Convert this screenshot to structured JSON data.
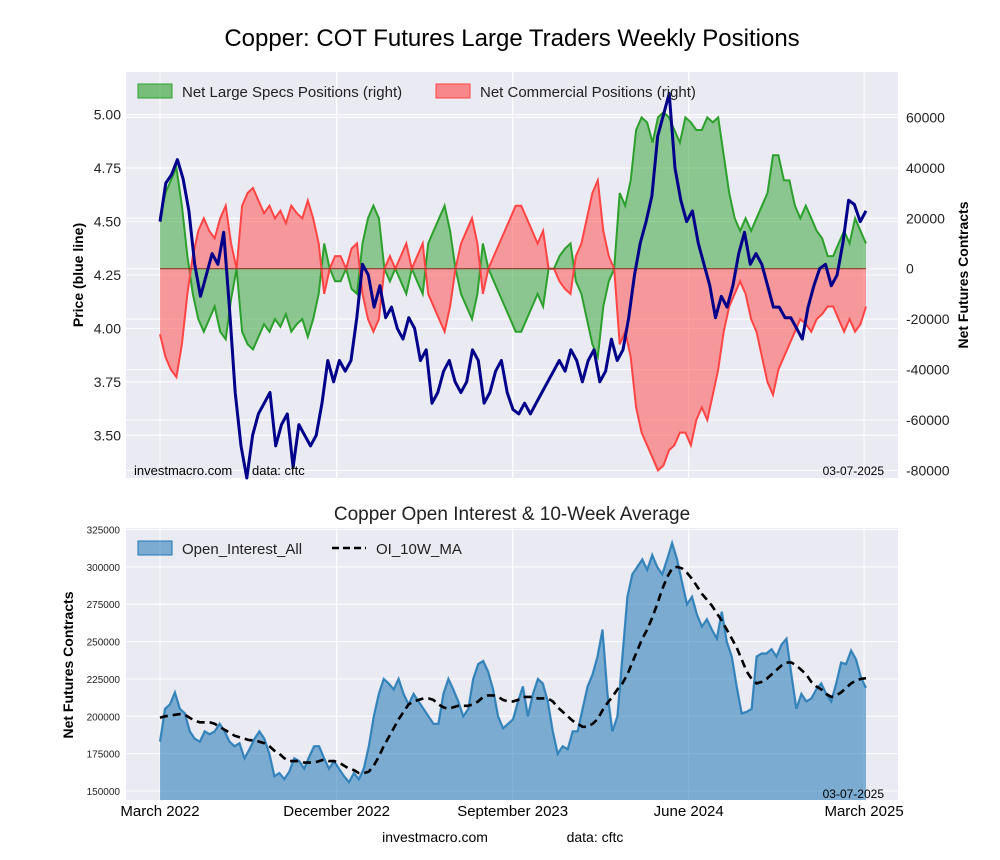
{
  "figure_title": "Copper: COT Futures Large Traders Weekly Positions",
  "footer": {
    "source": "investmacro.com",
    "data": "data: cftc"
  },
  "x_ticks": [
    "March 2022",
    "December 2022",
    "September 2023",
    "June 2024",
    "March 2025"
  ],
  "chart_data": [
    {
      "type": "line",
      "title": "Copper: COT Futures Large Traders Weekly Positions",
      "xlabel": "",
      "ylabel": "Price (blue line)",
      "y2label": "Net Futures Contracts",
      "ylim": [
        3.3,
        5.2
      ],
      "y2lim": [
        -83000,
        78000
      ],
      "yticks": [
        "3.50",
        "3.75",
        "4.00",
        "4.25",
        "4.50",
        "4.75",
        "5.00"
      ],
      "y2ticks": [
        "-80000",
        "-60000",
        "-40000",
        "-20000",
        "0",
        "20000",
        "40000",
        "60000"
      ],
      "grid": true,
      "legend_position": "top-left",
      "watermark": "investmacro.com",
      "source_note": "data: cftc",
      "date_label": "03-07-2025",
      "x_start": "2022-03-01",
      "x_end": "2025-03-04",
      "series": [
        {
          "name": "Net Large Specs Positions (right)",
          "type": "area",
          "axis": "right",
          "color": "#2ca02c",
          "values": [
            20000,
            30000,
            35000,
            40000,
            25000,
            5000,
            -10000,
            -20000,
            -25000,
            -20000,
            -15000,
            -25000,
            -28000,
            -12000,
            0,
            -25000,
            -30000,
            -32000,
            -27000,
            -22000,
            -25000,
            -20000,
            -23000,
            -18000,
            -25000,
            -22000,
            -20000,
            -27000,
            -20000,
            -10000,
            10000,
            0,
            -5000,
            -5000,
            0,
            -8000,
            -10000,
            10000,
            20000,
            25000,
            20000,
            0,
            -5000,
            0,
            -5000,
            -10000,
            0,
            -5000,
            -10000,
            10000,
            15000,
            20000,
            25000,
            15000,
            0,
            -10000,
            -15000,
            -20000,
            -10000,
            10000,
            0,
            -5000,
            -10000,
            -15000,
            -20000,
            -25000,
            -25000,
            -20000,
            -15000,
            -10000,
            -15000,
            0,
            0,
            5000,
            8000,
            10000,
            -5000,
            -10000,
            -20000,
            -30000,
            -35000,
            -15000,
            -5000,
            0,
            30000,
            25000,
            35000,
            55000,
            60000,
            58000,
            50000,
            60000,
            62000,
            60000,
            55000,
            50000,
            60000,
            58000,
            55000,
            55000,
            60000,
            58000,
            60000,
            45000,
            30000,
            20000,
            15000,
            20000,
            15000,
            20000,
            25000,
            30000,
            45000,
            45000,
            35000,
            35000,
            25000,
            20000,
            25000,
            20000,
            15000,
            12000,
            5000,
            5000,
            10000,
            15000,
            10000,
            20000,
            15000,
            10000
          ]
        },
        {
          "name": "Net Commercial Positions (right)",
          "type": "area",
          "axis": "right",
          "color": "#ff4444",
          "values": [
            -26000,
            -35000,
            -40000,
            -43000,
            -30000,
            -10000,
            5000,
            15000,
            20000,
            15000,
            12000,
            20000,
            25000,
            10000,
            0,
            25000,
            30000,
            32000,
            27000,
            22000,
            25000,
            20000,
            23000,
            18000,
            25000,
            22000,
            20000,
            27000,
            20000,
            10000,
            -10000,
            0,
            5000,
            5000,
            0,
            8000,
            10000,
            -10000,
            -20000,
            -25000,
            -20000,
            0,
            5000,
            0,
            5000,
            10000,
            0,
            5000,
            10000,
            -10000,
            -15000,
            -20000,
            -25000,
            -15000,
            0,
            10000,
            15000,
            20000,
            10000,
            -10000,
            0,
            5000,
            10000,
            15000,
            20000,
            25000,
            25000,
            20000,
            15000,
            10000,
            15000,
            0,
            0,
            -5000,
            -8000,
            -10000,
            5000,
            10000,
            20000,
            30000,
            35000,
            15000,
            5000,
            0,
            -30000,
            -25000,
            -35000,
            -55000,
            -65000,
            -70000,
            -75000,
            -80000,
            -78000,
            -72000,
            -70000,
            -65000,
            -65000,
            -70000,
            -60000,
            -55000,
            -60000,
            -50000,
            -40000,
            -25000,
            -15000,
            -10000,
            -5000,
            -10000,
            -20000,
            -25000,
            -35000,
            -45000,
            -50000,
            -40000,
            -35000,
            -30000,
            -25000,
            -20000,
            -22000,
            -25000,
            -20000,
            -18000,
            -15000,
            -15000,
            -20000,
            -25000,
            -20000,
            -25000,
            -22000,
            -15000
          ]
        },
        {
          "name": "",
          "type": "line",
          "axis": "left",
          "color": "#00008b",
          "values": [
            4.5,
            4.68,
            4.72,
            4.79,
            4.7,
            4.55,
            4.3,
            4.15,
            4.25,
            4.35,
            4.3,
            4.45,
            4.1,
            3.7,
            3.45,
            3.3,
            3.5,
            3.6,
            3.65,
            3.7,
            3.45,
            3.55,
            3.6,
            3.35,
            3.55,
            3.5,
            3.45,
            3.5,
            3.65,
            3.85,
            3.75,
            3.85,
            3.8,
            3.85,
            4.05,
            4.3,
            4.25,
            4.1,
            4.2,
            4.05,
            4.1,
            4.0,
            3.95,
            4.05,
            4.0,
            3.85,
            3.9,
            3.65,
            3.7,
            3.8,
            3.85,
            3.75,
            3.7,
            3.75,
            3.9,
            3.85,
            3.65,
            3.7,
            3.8,
            3.85,
            3.7,
            3.62,
            3.6,
            3.65,
            3.6,
            3.65,
            3.7,
            3.75,
            3.8,
            3.85,
            3.8,
            3.9,
            3.85,
            3.75,
            3.85,
            3.9,
            3.75,
            3.8,
            3.95,
            3.85,
            3.9,
            4.05,
            4.25,
            4.4,
            4.5,
            4.62,
            4.9,
            5.0,
            5.1,
            4.75,
            4.6,
            4.5,
            4.55,
            4.4,
            4.3,
            4.2,
            4.05,
            4.15,
            4.1,
            4.2,
            4.35,
            4.45,
            4.3,
            4.35,
            4.3,
            4.2,
            4.1,
            4.1,
            4.05,
            4.05,
            4.0,
            3.95,
            4.1,
            4.2,
            4.28,
            4.3,
            4.2,
            4.25,
            4.4,
            4.6,
            4.58,
            4.5,
            4.55
          ]
        }
      ]
    },
    {
      "type": "area",
      "title": "Copper Open Interest & 10-Week Average",
      "xlabel": "",
      "ylabel": "Net Futures Contracts",
      "ylim": [
        144000,
        326000
      ],
      "yticks": [
        "150000",
        "175000",
        "200000",
        "225000",
        "250000",
        "275000",
        "300000",
        "325000"
      ],
      "grid": true,
      "legend_position": "top-left",
      "date_label": "03-07-2025",
      "series": [
        {
          "name": "Open_Interest_All",
          "type": "area",
          "color": "#1f77b4",
          "values": [
            183000,
            205000,
            208000,
            216000,
            205000,
            202000,
            190000,
            185000,
            183000,
            190000,
            188000,
            190000,
            195000,
            190000,
            183000,
            180000,
            182000,
            172000,
            178000,
            185000,
            190000,
            185000,
            175000,
            160000,
            162000,
            158000,
            163000,
            172000,
            170000,
            165000,
            173000,
            180000,
            180000,
            172000,
            165000,
            170000,
            165000,
            160000,
            156000,
            162000,
            158000,
            165000,
            180000,
            200000,
            215000,
            225000,
            222000,
            218000,
            225000,
            215000,
            208000,
            215000,
            210000,
            205000,
            200000,
            195000,
            195000,
            215000,
            225000,
            218000,
            210000,
            200000,
            205000,
            225000,
            235000,
            237000,
            230000,
            218000,
            200000,
            192000,
            195000,
            198000,
            210000,
            220000,
            200000,
            215000,
            225000,
            222000,
            210000,
            190000,
            175000,
            180000,
            178000,
            190000,
            190000,
            205000,
            220000,
            228000,
            240000,
            258000,
            215000,
            190000,
            200000,
            240000,
            280000,
            295000,
            300000,
            305000,
            298000,
            308000,
            300000,
            295000,
            305000,
            316000,
            305000,
            290000,
            275000,
            280000,
            268000,
            260000,
            265000,
            258000,
            252000,
            270000,
            250000,
            240000,
            220000,
            202000,
            203000,
            205000,
            240000,
            242000,
            242000,
            245000,
            240000,
            248000,
            252000,
            228000,
            205000,
            215000,
            210000,
            212000,
            218000,
            222000,
            215000,
            210000,
            222000,
            236000,
            235000,
            244000,
            238000,
            226000,
            219000
          ]
        },
        {
          "name": "OI_10W_MA",
          "type": "line",
          "style": "dashed",
          "color": "#000000",
          "values": [
            199000,
            200000,
            200500,
            201000,
            201500,
            201000,
            199000,
            197000,
            196000,
            196000,
            196000,
            195000,
            193000,
            191000,
            189000,
            187000,
            186000,
            185000,
            184000,
            184000,
            183000,
            182000,
            180000,
            177000,
            175000,
            172000,
            170000,
            170000,
            170000,
            169000,
            169000,
            169000,
            170000,
            171000,
            170000,
            170000,
            169000,
            167000,
            165000,
            164000,
            162000,
            162000,
            163000,
            167000,
            173000,
            180000,
            186000,
            192000,
            198000,
            203000,
            208000,
            210000,
            211000,
            212000,
            212000,
            211000,
            208000,
            206000,
            205000,
            206000,
            207000,
            207000,
            207000,
            208000,
            210000,
            213000,
            214000,
            214000,
            213000,
            211000,
            210000,
            210000,
            211000,
            213000,
            213000,
            213000,
            212000,
            212000,
            212000,
            210000,
            206000,
            203000,
            200000,
            197000,
            195000,
            193000,
            193000,
            195000,
            198000,
            204000,
            209000,
            213000,
            218000,
            222000,
            228000,
            236000,
            244000,
            252000,
            258000,
            266000,
            275000,
            285000,
            293000,
            299000,
            300000,
            299000,
            296000,
            292000,
            287000,
            282000,
            278000,
            274000,
            269000,
            264000,
            258000,
            252000,
            246000,
            238000,
            230000,
            225000,
            222000,
            223000,
            225000,
            228000,
            231000,
            234000,
            236000,
            236000,
            234000,
            231000,
            228000,
            223000,
            220000,
            218000,
            215000,
            213000,
            214000,
            216000,
            219000,
            222000,
            224000,
            225000,
            225500
          ]
        }
      ]
    }
  ]
}
